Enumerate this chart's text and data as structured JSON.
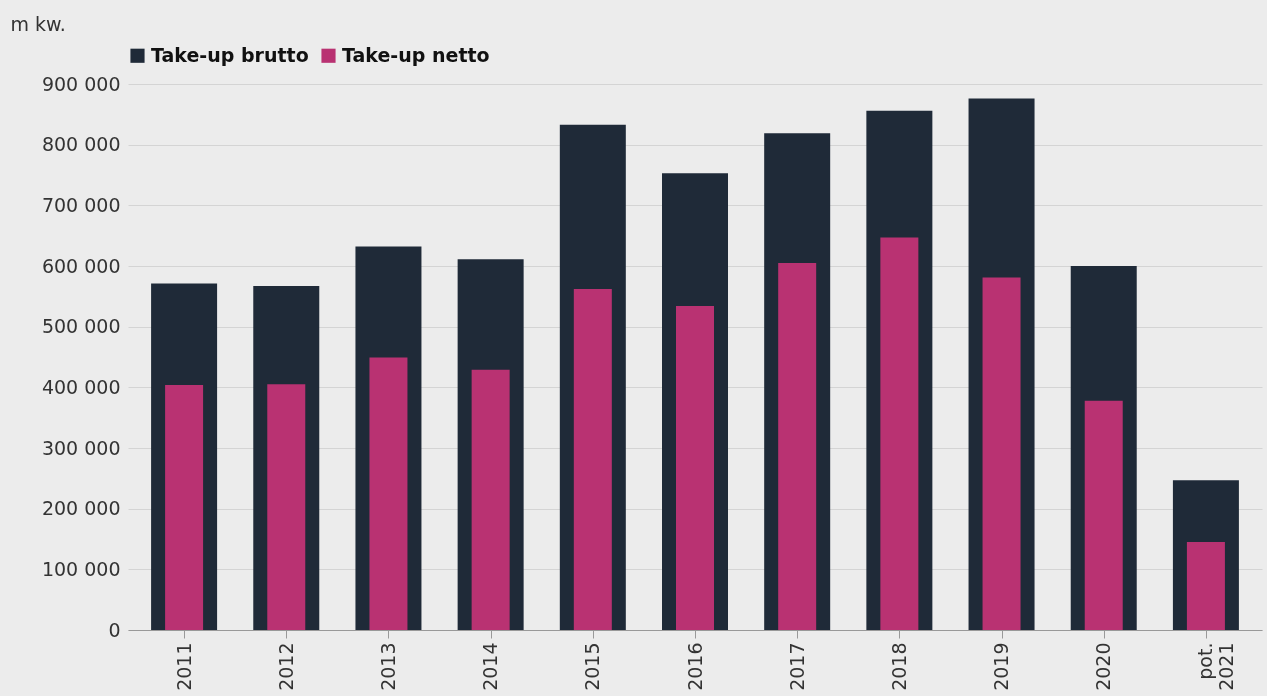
{
  "chart_data": {
    "type": "bar",
    "ylabel": "m kw.",
    "categories": [
      "2011",
      "2012",
      "2013",
      "2014",
      "2015",
      "2016",
      "2017",
      "2018",
      "2019",
      "2020",
      "pot. 2021"
    ],
    "series": [
      {
        "name": "Take-up brutto",
        "color": "#1f2a38",
        "values": [
          571000,
          567000,
          632000,
          611000,
          833000,
          753000,
          819000,
          856000,
          876000,
          600000,
          247000
        ]
      },
      {
        "name": "Take-up netto",
        "color": "#b93272",
        "values": [
          404000,
          405000,
          449000,
          429000,
          562000,
          534000,
          605000,
          647000,
          581000,
          378000,
          145000
        ]
      }
    ],
    "ylim": [
      0,
      900000
    ],
    "yticks": [
      {
        "value": 0,
        "label": "0"
      },
      {
        "value": 100000,
        "label": "100 000"
      },
      {
        "value": 200000,
        "label": "200 000"
      },
      {
        "value": 300000,
        "label": "300 000"
      },
      {
        "value": 400000,
        "label": "400 000"
      },
      {
        "value": 500000,
        "label": "500 000"
      },
      {
        "value": 600000,
        "label": "600 000"
      },
      {
        "value": 700000,
        "label": "700 000"
      },
      {
        "value": 800000,
        "label": "800 000"
      },
      {
        "value": 900000,
        "label": "900 000"
      }
    ],
    "grid": "y",
    "legend": "top"
  }
}
